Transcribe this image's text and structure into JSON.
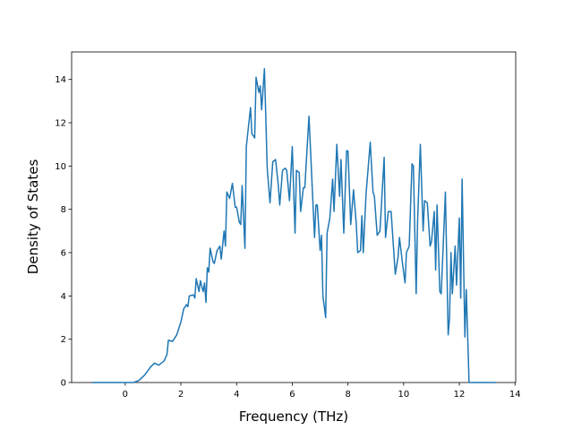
{
  "chart_data": {
    "type": "line",
    "x_label": "Frequency (THz)",
    "y_label": "Density of States",
    "xlim": [
      -1.925,
      14.025
    ],
    "ylim": [
      0,
      15.27
    ],
    "xticks": [
      0,
      2,
      4,
      6,
      8,
      10,
      12,
      14
    ],
    "yticks": [
      0,
      2,
      4,
      6,
      8,
      10,
      12,
      14
    ],
    "color": "#1f77b4",
    "x": [
      -1.2,
      0.3,
      0.5,
      0.7,
      0.9,
      1.05,
      1.2,
      1.4,
      1.5,
      1.55,
      1.7,
      1.85,
      2.0,
      2.1,
      2.2,
      2.25,
      2.3,
      2.45,
      2.5,
      2.55,
      2.65,
      2.7,
      2.8,
      2.85,
      2.9,
      2.95,
      3.0,
      3.05,
      3.15,
      3.2,
      3.3,
      3.4,
      3.45,
      3.55,
      3.6,
      3.65,
      3.75,
      3.85,
      3.95,
      4.0,
      4.1,
      4.15,
      4.2,
      4.3,
      4.35,
      4.5,
      4.55,
      4.65,
      4.7,
      4.8,
      4.85,
      4.9,
      5.0,
      5.1,
      5.2,
      5.3,
      5.4,
      5.5,
      5.55,
      5.65,
      5.75,
      5.8,
      5.9,
      6.0,
      6.1,
      6.15,
      6.25,
      6.3,
      6.4,
      6.45,
      6.6,
      6.8,
      6.85,
      6.9,
      7.0,
      7.05,
      7.1,
      7.2,
      7.25,
      7.35,
      7.45,
      7.5,
      7.6,
      7.7,
      7.75,
      7.85,
      7.95,
      8.0,
      8.1,
      8.2,
      8.3,
      8.35,
      8.45,
      8.5,
      8.55,
      8.65,
      8.8,
      8.9,
      8.95,
      9.05,
      9.15,
      9.3,
      9.35,
      9.45,
      9.55,
      9.7,
      9.8,
      9.85,
      9.95,
      10.05,
      10.1,
      10.2,
      10.3,
      10.35,
      10.45,
      10.5,
      10.6,
      10.7,
      10.75,
      10.85,
      10.95,
      11.0,
      11.1,
      11.15,
      11.2,
      11.3,
      11.35,
      11.5,
      11.6,
      11.65,
      11.7,
      11.75,
      11.85,
      11.9,
      12.0,
      12.05,
      12.1,
      12.2,
      12.25,
      12.35,
      13.3
    ],
    "values": [
      0,
      0,
      0.1,
      0.35,
      0.7,
      0.9,
      0.8,
      1.0,
      1.3,
      1.95,
      1.9,
      2.2,
      2.8,
      3.4,
      3.6,
      3.5,
      4.0,
      4.05,
      3.9,
      4.8,
      4.2,
      4.7,
      4.2,
      4.6,
      3.7,
      5.3,
      5.1,
      6.2,
      5.6,
      5.5,
      6.1,
      6.3,
      5.7,
      7.0,
      6.3,
      8.8,
      8.5,
      9.2,
      8.1,
      8.1,
      7.4,
      7.3,
      9.1,
      6.2,
      10.9,
      12.7,
      11.5,
      11.3,
      14.1,
      13.4,
      13.7,
      12.6,
      14.5,
      9.9,
      8.3,
      10.2,
      10.3,
      9.1,
      8.2,
      9.8,
      9.9,
      9.8,
      8.4,
      10.9,
      6.9,
      9.8,
      9.7,
      7.9,
      9.0,
      9.0,
      12.3,
      6.7,
      8.2,
      8.2,
      6.1,
      6.8,
      4.0,
      3.0,
      6.9,
      7.6,
      9.4,
      7.9,
      11.0,
      8.6,
      10.3,
      6.9,
      10.7,
      10.7,
      7.3,
      8.9,
      7.3,
      6.0,
      6.1,
      7.7,
      6.0,
      8.7,
      11.1,
      8.8,
      8.6,
      6.8,
      7.0,
      10.4,
      6.7,
      7.9,
      7.9,
      5.0,
      5.8,
      6.7,
      5.6,
      4.6,
      6.0,
      6.3,
      10.1,
      10.0,
      4.1,
      7.4,
      11.0,
      7.0,
      8.4,
      8.3,
      6.3,
      6.5,
      7.9,
      5.2,
      8.2,
      4.2,
      4.1,
      8.8,
      2.2,
      3.0,
      6.0,
      4.1,
      6.3,
      4.5,
      7.6,
      3.9,
      9.4,
      2.1,
      4.3,
      0,
      0
    ]
  }
}
